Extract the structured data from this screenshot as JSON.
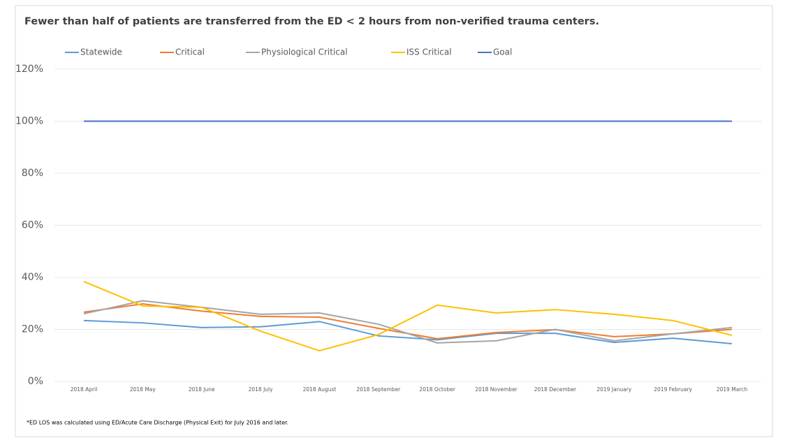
{
  "chart_data": {
    "type": "line",
    "title": "Fewer than half of patients are transferred from the ED < 2 hours from non-verified trauma centers.",
    "footnote": "*ED LOS was calculated using ED/Acute Care Discharge (Physical Exit) for July 2016 and later.",
    "categories": [
      "2018 April",
      "2018 May",
      "2018 June",
      "2018 July",
      "2018 August",
      "2018 September",
      "2018 October",
      "2018 November",
      "2018 December",
      "2019 January",
      "2019 February",
      "2019 March"
    ],
    "series": [
      {
        "name": "Statewide",
        "color": "#5b9bd5",
        "values": [
          23.4,
          22.5,
          20.7,
          21,
          23,
          17.5,
          16,
          18.5,
          18.5,
          15,
          16.6,
          14.5
        ]
      },
      {
        "name": "Critical",
        "color": "#ed7d31",
        "values": [
          26.6,
          29.8,
          27,
          25,
          24.7,
          20.4,
          16.4,
          18.8,
          19.9,
          17.2,
          18.3,
          20
        ]
      },
      {
        "name": "Physiological Critical",
        "color": "#a5a5a5",
        "values": [
          26,
          31,
          28.5,
          25.8,
          26.3,
          22,
          14.8,
          15.6,
          20,
          15.6,
          18.3,
          20.7
        ]
      },
      {
        "name": "ISS Critical",
        "color": "#ffc000",
        "values": [
          38.4,
          29,
          28.5,
          19.3,
          11.8,
          18,
          29.3,
          26.3,
          27.6,
          25.8,
          23.4,
          17.7
        ]
      },
      {
        "name": "Goal",
        "color": "#4472c4",
        "values": [
          100,
          100,
          100,
          100,
          100,
          100,
          100,
          100,
          100,
          100,
          100,
          100
        ]
      }
    ],
    "ylim": [
      0,
      120
    ],
    "yticks": [
      {
        "value": 0,
        "label": "0%"
      },
      {
        "value": 20,
        "label": "20%"
      },
      {
        "value": 40,
        "label": "40%"
      },
      {
        "value": 60,
        "label": "60%"
      },
      {
        "value": 80,
        "label": "80%"
      },
      {
        "value": 100,
        "label": "100%"
      },
      {
        "value": 120,
        "label": "120%"
      }
    ],
    "grid": true,
    "legend": "top"
  }
}
